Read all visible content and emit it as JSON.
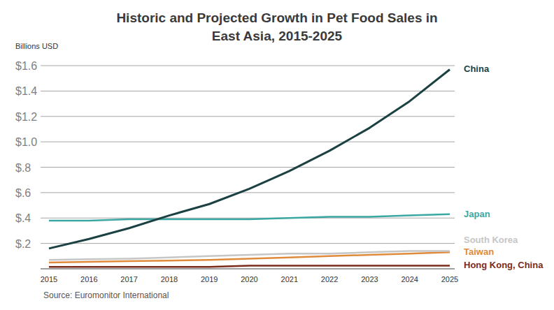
{
  "chart_data": {
    "type": "line",
    "title": "Historic and Projected Growth in Pet Food Sales in East Asia, 2015-2025",
    "ylabel": "Billions USD",
    "source": "Source: Euromonitor International",
    "x": [
      2015,
      2016,
      2017,
      2018,
      2019,
      2020,
      2021,
      2022,
      2023,
      2024,
      2025
    ],
    "xlim": [
      2015,
      2025
    ],
    "xticks": [
      2015,
      2016,
      2017,
      2018,
      2019,
      2020,
      2021,
      2022,
      2023,
      2024,
      2025
    ],
    "ylim": [
      0,
      1.6
    ],
    "yticks": [
      {
        "value": 0.2,
        "label": "$.2"
      },
      {
        "value": 0.4,
        "label": "$.4"
      },
      {
        "value": 0.6,
        "label": "$.6"
      },
      {
        "value": 0.8,
        "label": "$.8"
      },
      {
        "value": 1.0,
        "label": "$1.0"
      },
      {
        "value": 1.2,
        "label": "$1.2"
      },
      {
        "value": 1.4,
        "label": "$1.4"
      },
      {
        "value": 1.6,
        "label": "$1.6"
      }
    ],
    "grid": true,
    "series": [
      {
        "name": "China",
        "color": "#1b4143",
        "values": [
          0.16,
          0.235,
          0.32,
          0.42,
          0.51,
          0.63,
          0.77,
          0.93,
          1.11,
          1.32,
          1.57
        ]
      },
      {
        "name": "Japan",
        "color": "#3ba7a2",
        "values": [
          0.38,
          0.38,
          0.39,
          0.39,
          0.39,
          0.39,
          0.4,
          0.41,
          0.41,
          0.42,
          0.43
        ]
      },
      {
        "name": "South Korea",
        "color": "#c6c6c6",
        "values": [
          0.07,
          0.075,
          0.08,
          0.09,
          0.1,
          0.11,
          0.12,
          0.12,
          0.13,
          0.14,
          0.14
        ]
      },
      {
        "name": "Taiwan",
        "color": "#e08a3c",
        "values": [
          0.05,
          0.055,
          0.06,
          0.065,
          0.07,
          0.08,
          0.09,
          0.1,
          0.11,
          0.12,
          0.13
        ]
      },
      {
        "name": "Hong Kong, China",
        "color": "#7b2b1c",
        "values": [
          0.015,
          0.015,
          0.015,
          0.015,
          0.015,
          0.025,
          0.025,
          0.025,
          0.025,
          0.025,
          0.025
        ]
      }
    ]
  }
}
